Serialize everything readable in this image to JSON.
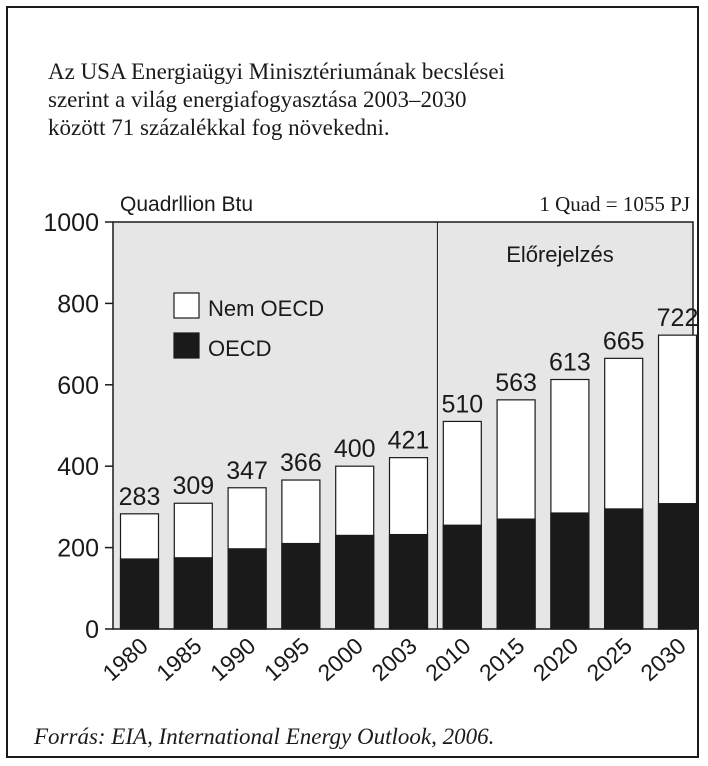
{
  "intro_lines": [
    "Az USA Energiaügyi Minisztériumának becslései",
    "szerint a világ energiafogyasztása 2003–2030",
    "között 71 százalékkal fog növekedni."
  ],
  "source": "Forrás: EIA, International Energy Outlook, 2006.",
  "chart_data": {
    "type": "bar",
    "stacked": true,
    "ylabel": "Quadrllion Btu",
    "unit_note": "1 Quad = 1055 PJ",
    "forecast_label": "Előrejelzés",
    "forecast_start_index": 6,
    "ylim": [
      0,
      1000
    ],
    "yticks": [
      0,
      200,
      400,
      600,
      800,
      1000
    ],
    "categories": [
      "1980",
      "1985",
      "1990",
      "1995",
      "2000",
      "2003",
      "2010",
      "2015",
      "2020",
      "2025",
      "2030"
    ],
    "totals": [
      283,
      309,
      347,
      366,
      400,
      421,
      510,
      563,
      613,
      665,
      722
    ],
    "series": [
      {
        "name": "OECD",
        "color": "#1a1a1a",
        "values": [
          172,
          175,
          197,
          210,
          230,
          232,
          255,
          270,
          285,
          295,
          308
        ]
      },
      {
        "name": "Nem OECD",
        "color": "#ffffff",
        "values": [
          111,
          134,
          150,
          156,
          170,
          189,
          255,
          293,
          328,
          370,
          414
        ]
      }
    ],
    "legend_order": [
      "Nem OECD",
      "OECD"
    ],
    "legend_position": "top-left",
    "grid": false,
    "plot_background": "#e6e6e6"
  }
}
